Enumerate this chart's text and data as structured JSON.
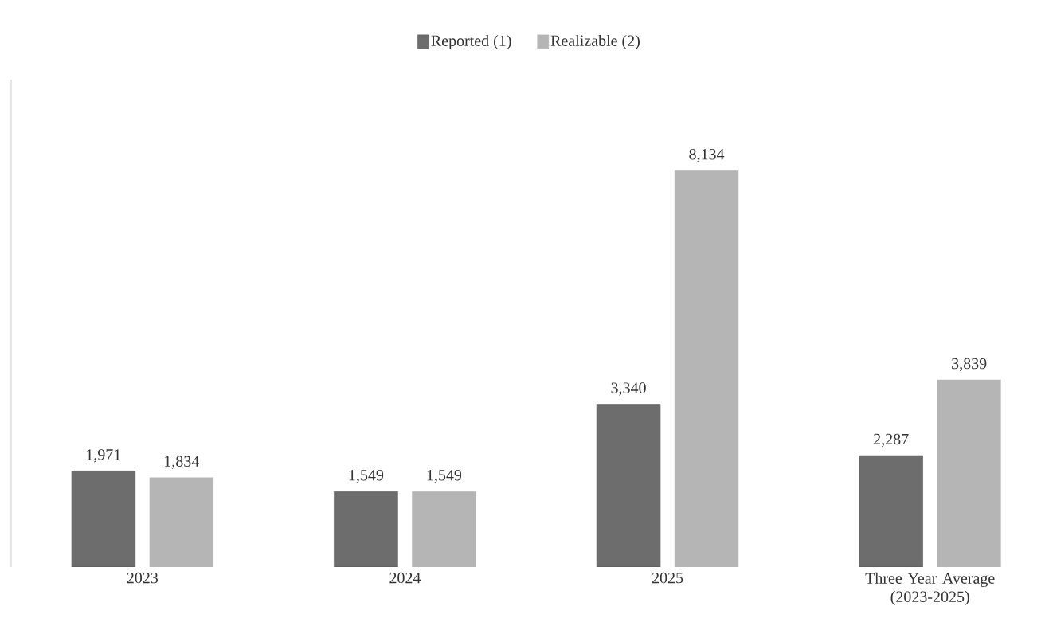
{
  "chart_data": {
    "type": "bar",
    "categories": [
      "2023",
      "2024",
      "2025",
      "Three Year Average (2023-2025)"
    ],
    "series": [
      {
        "name": "Reported (1)",
        "color": "#6d6d6d",
        "values": [
          1971,
          1549,
          3340,
          2287
        ],
        "value_labels": [
          "1,971",
          "1,549",
          "3,340",
          "2,287"
        ]
      },
      {
        "name": "Realizable (2)",
        "color": "#b5b5b5",
        "values": [
          1834,
          1549,
          8134,
          3839
        ],
        "value_labels": [
          "1,834",
          "1,549",
          "8,134",
          "3,839"
        ]
      }
    ],
    "ylim": [
      0,
      10000
    ],
    "tick_labels": "x",
    "legend": "top"
  }
}
